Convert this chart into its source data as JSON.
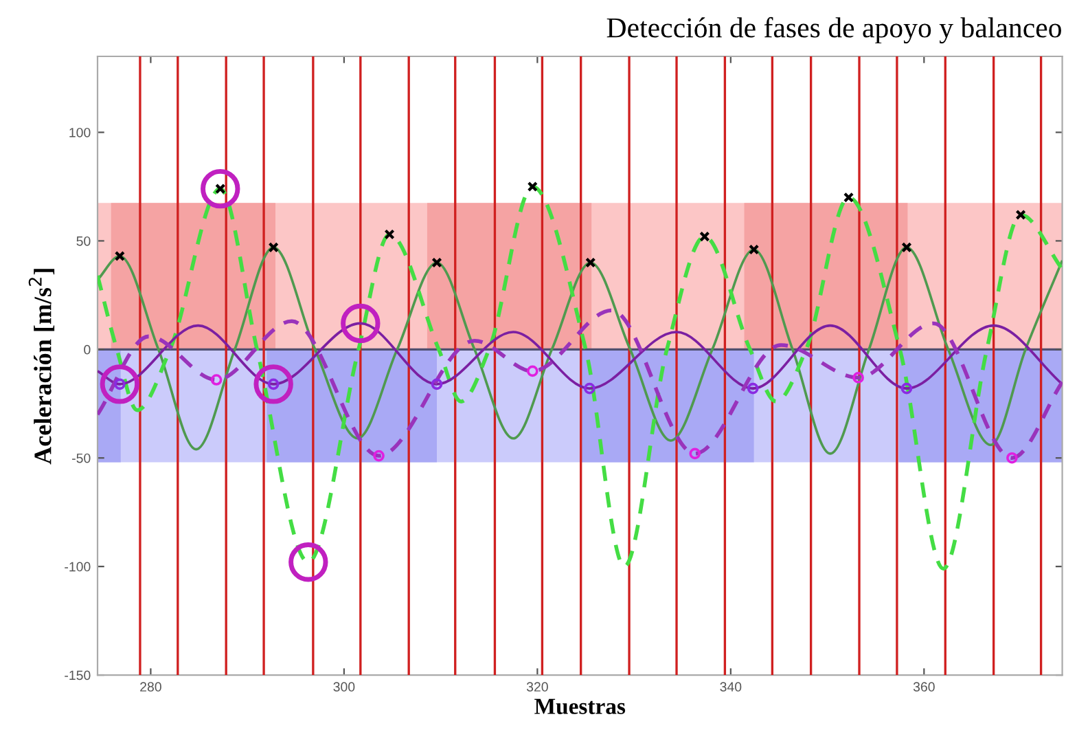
{
  "chart_data": {
    "type": "line",
    "title": "Detección de fases de apoyo y balanceo",
    "xlabel": "Muestras",
    "ylabel": "Aceleración [m/s$^{2}$]",
    "xlim": [
      274.5,
      374.3
    ],
    "ylim": [
      -150,
      135
    ],
    "xticks": [
      280,
      300,
      320,
      340,
      360
    ],
    "yticks": [
      -150,
      -100,
      -50,
      0,
      50,
      100
    ],
    "grid": false,
    "legend": false,
    "bands": [
      {
        "axis": "y",
        "from": 0,
        "to": 67.5,
        "color": "#fcc6c6"
      },
      {
        "axis": "y",
        "from": -52,
        "to": 0,
        "color": "#cbcbfb"
      },
      {
        "axis": "x",
        "from": 274.5,
        "to": 276.9,
        "color": "#a9a9f5"
      },
      {
        "axis": "x",
        "from": 292.0,
        "to": 309.6,
        "color": "#a9a9f5"
      },
      {
        "axis": "x",
        "from": 324.5,
        "to": 342.4,
        "color": "#a9a9f5"
      },
      {
        "axis": "x",
        "from": 357.4,
        "to": 374.3,
        "color": "#a9a9f5"
      }
    ],
    "ref_lines": [
      {
        "axis": "y",
        "value": 0,
        "color": "#505070"
      },
      {
        "axis": "x",
        "value": 278.9,
        "color": "#d02020"
      },
      {
        "axis": "x",
        "value": 282.8,
        "color": "#d02020"
      },
      {
        "axis": "x",
        "value": 287.8,
        "color": "#d02020"
      },
      {
        "axis": "x",
        "value": 291.7,
        "color": "#d02020"
      },
      {
        "axis": "x",
        "value": 296.8,
        "color": "#d02020"
      },
      {
        "axis": "x",
        "value": 301.7,
        "color": "#d02020"
      },
      {
        "axis": "x",
        "value": 306.7,
        "color": "#d02020"
      },
      {
        "axis": "x",
        "value": 311.5,
        "color": "#d02020"
      },
      {
        "axis": "x",
        "value": 315.6,
        "color": "#d02020"
      },
      {
        "axis": "x",
        "value": 320.5,
        "color": "#d02020"
      },
      {
        "axis": "x",
        "value": 324.5,
        "color": "#d02020"
      },
      {
        "axis": "x",
        "value": 329.5,
        "color": "#d02020"
      },
      {
        "axis": "x",
        "value": 334.4,
        "color": "#d02020"
      },
      {
        "axis": "x",
        "value": 339.4,
        "color": "#d02020"
      },
      {
        "axis": "x",
        "value": 344.3,
        "color": "#d02020"
      },
      {
        "axis": "x",
        "value": 348.3,
        "color": "#d02020"
      },
      {
        "axis": "x",
        "value": 353.3,
        "color": "#d02020"
      },
      {
        "axis": "x",
        "value": 357.2,
        "color": "#d02020"
      },
      {
        "axis": "x",
        "value": 362.2,
        "color": "#d02020"
      },
      {
        "axis": "x",
        "value": 367.2,
        "color": "#d02020"
      },
      {
        "axis": "x",
        "value": 372.1,
        "color": "#d02020"
      }
    ],
    "series": [
      {
        "type": "area",
        "color": "#f5a3a3",
        "x": [
          275.9,
          275.9,
          292.9,
          292.9,
          308.6,
          308.6,
          325.6,
          325.6,
          341.4,
          341.4,
          358.3,
          358.3
        ],
        "values": [
          0,
          67.5,
          67.5,
          0,
          0,
          67.5,
          67.5,
          0,
          0,
          67.5,
          67.5,
          0
        ]
      },
      {
        "color": "#4f9a4f",
        "line_style": "solid",
        "marker": "none",
        "x": [
          274.5,
          276.8,
          280.8,
          284.7,
          288.7,
          292.7,
          297.0,
          301.4,
          305.5,
          309.6,
          313.5,
          317.5,
          321.5,
          325.5,
          329.6,
          333.8,
          338.1,
          342.4,
          346.4,
          350.3,
          354.3,
          358.2,
          362.5,
          366.9,
          370.5,
          374.3
        ],
        "values": [
          32,
          43,
          0,
          -46,
          0,
          47,
          0,
          -41,
          0,
          40,
          0,
          -41,
          0,
          40,
          0,
          -42,
          0,
          46,
          0,
          -48,
          0,
          47,
          0,
          -44,
          0,
          41
        ]
      },
      {
        "color": "#44dd44",
        "line_style": "dashed",
        "marker": "none",
        "x": [
          274.5,
          276.5,
          278.6,
          282.0,
          287.2,
          291.0,
          296.3,
          301.5,
          304.7,
          309.8,
          312.1,
          315.0,
          319.5,
          325.0,
          329.0,
          333.4,
          337.3,
          342.0,
          344.7,
          347.8,
          352.2,
          357.5,
          362.0,
          366.5,
          370.0,
          374.3
        ],
        "values": [
          34,
          0,
          -28,
          0,
          74,
          0,
          -98,
          0,
          53,
          0,
          -24,
          0,
          75,
          0,
          -100,
          0,
          52,
          0,
          -24,
          0,
          70,
          0,
          -101,
          0,
          62,
          37
        ]
      },
      {
        "color": "#7b1fa2",
        "line_style": "solid",
        "marker": "none",
        "x": [
          274.5,
          276.8,
          284.9,
          292.7,
          301.7,
          309.6,
          317.5,
          325.4,
          334.4,
          342.3,
          350.3,
          358.2,
          367.2,
          374.3
        ],
        "values": [
          -10,
          -16,
          11,
          -16,
          12,
          -16,
          8,
          -18,
          8,
          -18,
          11,
          -18,
          11,
          -16
        ]
      },
      {
        "color": "#9933bb",
        "line_style": "dashed",
        "marker": "none",
        "x": [
          274.5,
          279.8,
          286.8,
          294.6,
          303.6,
          313.5,
          319.5,
          327.7,
          336.3,
          345.2,
          353.2,
          361.0,
          369.1,
          374.3
        ],
        "values": [
          -30,
          6,
          -14,
          13,
          -49,
          4,
          -10,
          18,
          -48,
          2,
          -13,
          12,
          -50,
          -15
        ]
      },
      {
        "type": "scatter",
        "color": "#8a2be2",
        "marker": "circle",
        "x": [
          276.8,
          292.7,
          309.6,
          325.4,
          342.3,
          358.2
        ],
        "values": [
          -16,
          -16,
          -16,
          -18,
          -18,
          -18
        ]
      },
      {
        "type": "scatter",
        "color": "#e020e0",
        "marker": "circle",
        "x": [
          286.8,
          303.6,
          319.5,
          336.3,
          353.2,
          369.1
        ],
        "values": [
          -14,
          -49,
          -10,
          -48,
          -13,
          -50
        ]
      },
      {
        "type": "scatter",
        "color": "#000000",
        "marker": "cross",
        "x": [
          276.8,
          287.2,
          292.7,
          304.7,
          309.6,
          319.5,
          325.5,
          337.3,
          342.4,
          352.2,
          358.2,
          370.0
        ],
        "values": [
          43,
          74,
          47,
          53,
          40,
          75,
          40,
          52,
          46,
          70,
          47,
          62
        ]
      },
      {
        "type": "bubble",
        "color": "#c020c0",
        "x": [
          276.8,
          287.2,
          292.7,
          296.3,
          301.7
        ],
        "values": [
          -16,
          74,
          -16,
          -98,
          12
        ],
        "sizes": [
          1,
          1,
          1,
          1,
          1
        ]
      }
    ]
  }
}
